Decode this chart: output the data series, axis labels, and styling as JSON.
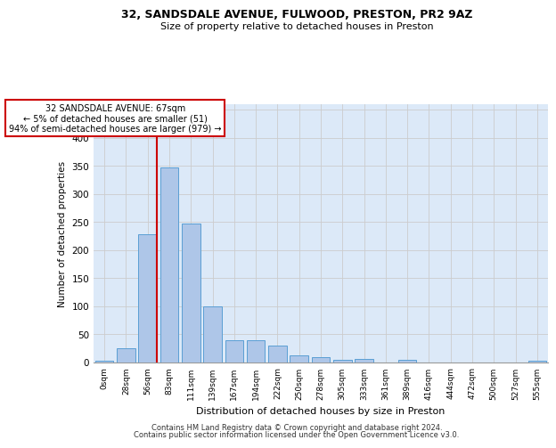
{
  "title1": "32, SANDSDALE AVENUE, FULWOOD, PRESTON, PR2 9AZ",
  "title2": "Size of property relative to detached houses in Preston",
  "xlabel": "Distribution of detached houses by size in Preston",
  "ylabel": "Number of detached properties",
  "bar_color": "#aec6e8",
  "bar_edge_color": "#5a9fd4",
  "categories": [
    "0sqm",
    "28sqm",
    "56sqm",
    "83sqm",
    "111sqm",
    "139sqm",
    "167sqm",
    "194sqm",
    "222sqm",
    "250sqm",
    "278sqm",
    "305sqm",
    "333sqm",
    "361sqm",
    "389sqm",
    "416sqm",
    "444sqm",
    "472sqm",
    "500sqm",
    "527sqm",
    "555sqm"
  ],
  "values": [
    3,
    25,
    228,
    347,
    247,
    100,
    40,
    40,
    30,
    13,
    10,
    4,
    6,
    0,
    4,
    0,
    0,
    0,
    0,
    0,
    3
  ],
  "red_line_color": "#cc0000",
  "annotation_text": "32 SANDSDALE AVENUE: 67sqm\n← 5% of detached houses are smaller (51)\n94% of semi-detached houses are larger (979) →",
  "annotation_box_color": "#ffffff",
  "annotation_box_edge_color": "#cc0000",
  "ylim": [
    0,
    460
  ],
  "yticks": [
    0,
    50,
    100,
    150,
    200,
    250,
    300,
    350,
    400,
    450
  ],
  "grid_color": "#cccccc",
  "background_color": "#dce9f8",
  "footer1": "Contains HM Land Registry data © Crown copyright and database right 2024.",
  "footer2": "Contains public sector information licensed under the Open Government Licence v3.0."
}
